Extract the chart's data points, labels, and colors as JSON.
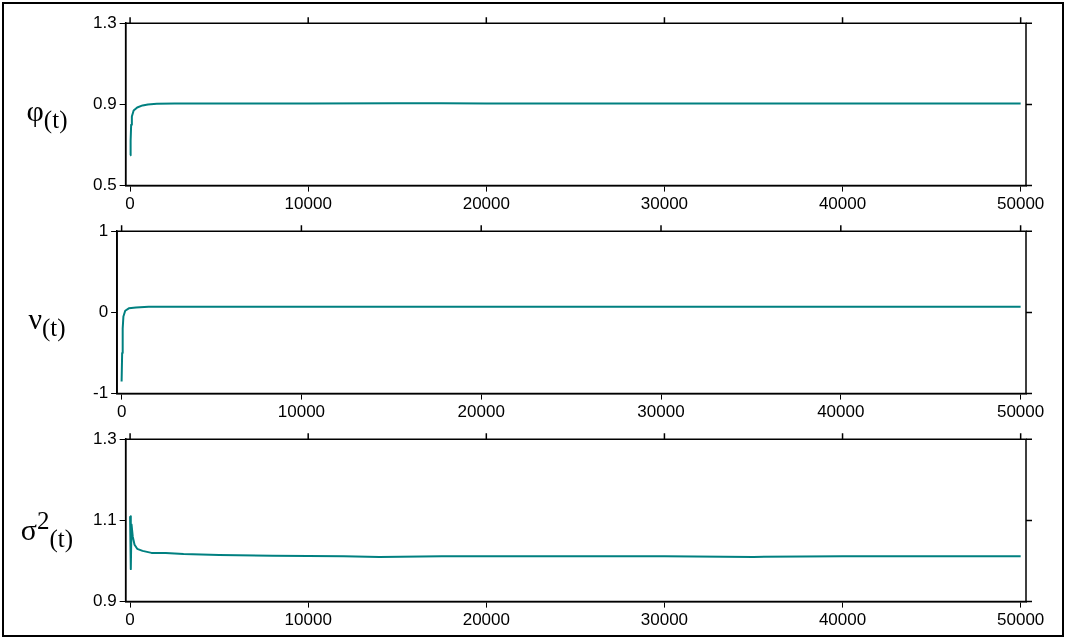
{
  "chart_data": [
    {
      "type": "line",
      "ylabel": "φ$_{(t)}$",
      "x": [
        0,
        30,
        60,
        100,
        200,
        400,
        700,
        1000,
        1500,
        2500,
        5000,
        10000,
        15000,
        17500,
        20000,
        30000,
        40000,
        50000
      ],
      "series": [
        {
          "color": "#008080",
          "values": [
            0.65,
            0.72,
            0.8,
            0.84,
            0.87,
            0.885,
            0.895,
            0.9,
            0.903,
            0.905,
            0.905,
            0.905,
            0.906,
            0.906,
            0.905,
            0.905,
            0.905,
            0.905
          ]
        }
      ],
      "xlim": [
        -250,
        50300
      ],
      "xticks": [
        0,
        10000,
        20000,
        30000,
        40000,
        50000
      ],
      "ylim": [
        0.5,
        1.3
      ],
      "yticks": [
        0.5,
        0.9,
        1.3
      ]
    },
    {
      "type": "line",
      "ylabel": "ν$_{(t)}$",
      "x": [
        0,
        30,
        60,
        100,
        200,
        400,
        800,
        1500,
        5000,
        10000,
        20000,
        30000,
        40000,
        50000
      ],
      "series": [
        {
          "color": "#008080",
          "values": [
            -0.85,
            -0.5,
            -0.2,
            -0.05,
            0.02,
            0.05,
            0.06,
            0.07,
            0.07,
            0.07,
            0.07,
            0.07,
            0.07,
            0.07
          ]
        }
      ],
      "xlim": [
        -250,
        50300
      ],
      "xticks": [
        0,
        10000,
        20000,
        30000,
        40000,
        50000
      ],
      "ylim": [
        -1,
        1
      ],
      "yticks": [
        -1,
        0,
        1
      ]
    },
    {
      "type": "line",
      "ylabel": "σ$^{2}$$_{(t)}$",
      "x": [
        0,
        40,
        80,
        150,
        250,
        400,
        700,
        1200,
        2000,
        3000,
        5000,
        8000,
        12000,
        14000,
        17500,
        20000,
        30000,
        35000,
        40000,
        50000
      ],
      "series": [
        {
          "color": "#008080",
          "values": [
            1.11,
            0.98,
            1.09,
            1.06,
            1.04,
            1.03,
            1.025,
            1.02,
            1.02,
            1.017,
            1.015,
            1.013,
            1.012,
            1.01,
            1.012,
            1.012,
            1.012,
            1.01,
            1.012,
            1.012
          ]
        }
      ],
      "xlim": [
        -250,
        50300
      ],
      "xticks": [
        0,
        10000,
        20000,
        30000,
        40000,
        50000
      ],
      "ylim": [
        0.9,
        1.3
      ],
      "yticks": [
        0.9,
        1.1,
        1.3
      ]
    }
  ]
}
